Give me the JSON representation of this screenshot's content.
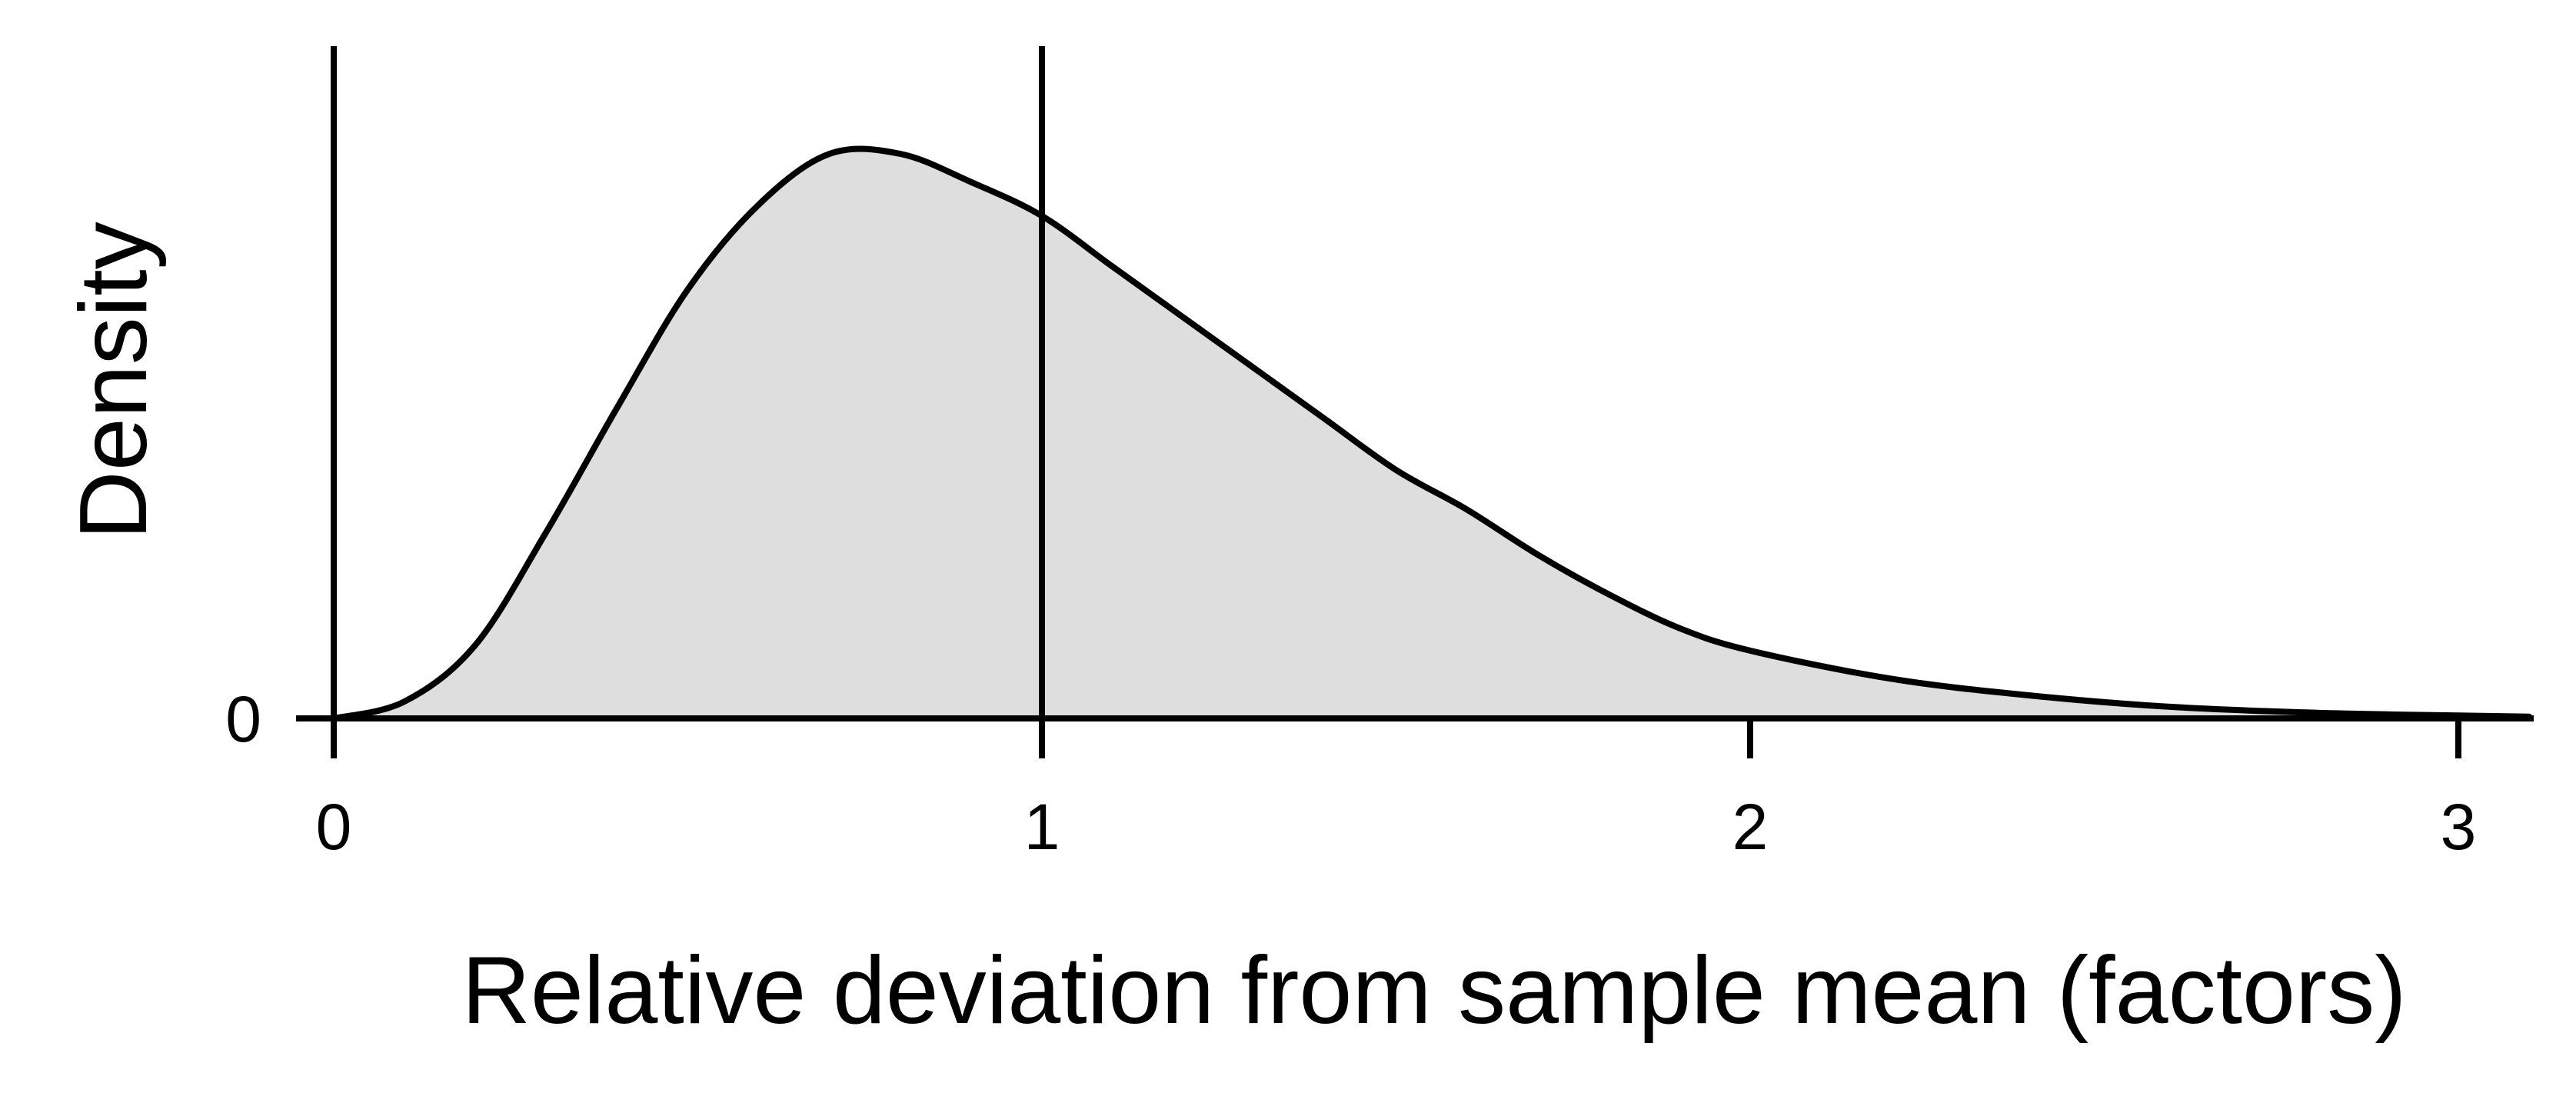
{
  "chart_data": {
    "type": "area",
    "xlabel": "Relative deviation from sample mean (factors)",
    "ylabel": "Density",
    "xlim": [
      -0.05,
      3.1
    ],
    "ylim": [
      0,
      1.05
    ],
    "x_ticks": [
      0,
      1,
      2,
      3
    ],
    "x_tick_labels": [
      "0",
      "1",
      "2",
      "3"
    ],
    "y_ticks": [
      0
    ],
    "y_tick_labels": [
      "0"
    ],
    "vertical_reference_lines": [
      0,
      1
    ],
    "grid": false,
    "legend": "none",
    "fill_color": "#dedede",
    "line_color": "#000000",
    "series": [
      {
        "x": [
          0,
          0.1,
          0.2,
          0.3,
          0.4,
          0.5,
          0.6,
          0.7,
          0.8,
          0.9,
          1.0,
          1.1,
          1.2,
          1.3,
          1.4,
          1.5,
          1.6,
          1.7,
          1.8,
          1.9,
          2.0,
          2.2,
          2.4,
          2.6,
          2.8,
          3.0,
          3.1
        ],
        "y": [
          0.0,
          0.03,
          0.13,
          0.33,
          0.55,
          0.76,
          0.91,
          1.0,
          1.0,
          0.95,
          0.89,
          0.8,
          0.71,
          0.62,
          0.53,
          0.44,
          0.37,
          0.29,
          0.22,
          0.16,
          0.12,
          0.07,
          0.04,
          0.02,
          0.01,
          0.005,
          0.003
        ]
      }
    ]
  }
}
